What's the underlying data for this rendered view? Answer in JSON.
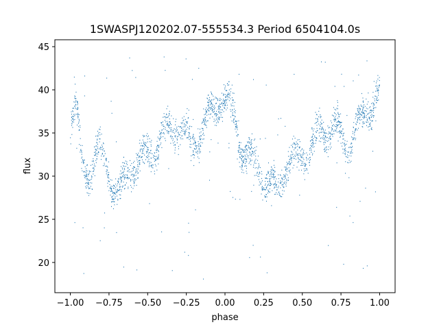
{
  "chart_data": {
    "type": "scatter",
    "title": "1SWASPJ120202.07-555534.3 Period 6504104.0s",
    "xlabel": "phase",
    "ylabel": "flux",
    "xlim": [
      -1.1,
      1.1
    ],
    "ylim": [
      16.5,
      45.8
    ],
    "xticks": [
      -1.0,
      -0.75,
      -0.5,
      -0.25,
      0.0,
      0.25,
      0.5,
      0.75,
      1.0
    ],
    "xtick_labels": [
      "−1.00",
      "−0.75",
      "−0.50",
      "−0.25",
      "0.00",
      "0.25",
      "0.50",
      "0.75",
      "1.00"
    ],
    "yticks": [
      20,
      25,
      30,
      35,
      40,
      45
    ],
    "ytick_labels": [
      "20",
      "25",
      "30",
      "35",
      "40",
      "45"
    ],
    "grid": false,
    "color": "#1f77b4",
    "trend": [
      {
        "x": -1.0,
        "y": 36.5
      },
      {
        "x": -0.97,
        "y": 38.0
      },
      {
        "x": -0.95,
        "y": 36.0
      },
      {
        "x": -0.93,
        "y": 31.0
      },
      {
        "x": -0.88,
        "y": 30.5
      },
      {
        "x": -0.82,
        "y": 33.0
      },
      {
        "x": -0.77,
        "y": 31.0
      },
      {
        "x": -0.72,
        "y": 29.0
      },
      {
        "x": -0.68,
        "y": 28.0
      },
      {
        "x": -0.6,
        "y": 31.5
      },
      {
        "x": -0.52,
        "y": 32.0
      },
      {
        "x": -0.45,
        "y": 33.5
      },
      {
        "x": -0.38,
        "y": 35.0
      },
      {
        "x": -0.3,
        "y": 36.0
      },
      {
        "x": -0.22,
        "y": 33.5
      },
      {
        "x": -0.15,
        "y": 35.5
      },
      {
        "x": -0.08,
        "y": 37.5
      },
      {
        "x": -0.02,
        "y": 39.5
      },
      {
        "x": 0.05,
        "y": 37.0
      },
      {
        "x": 0.1,
        "y": 34.0
      },
      {
        "x": 0.15,
        "y": 32.0
      },
      {
        "x": 0.22,
        "y": 31.0
      },
      {
        "x": 0.28,
        "y": 29.0
      },
      {
        "x": 0.33,
        "y": 28.0
      },
      {
        "x": 0.4,
        "y": 31.5
      },
      {
        "x": 0.48,
        "y": 32.0
      },
      {
        "x": 0.55,
        "y": 33.5
      },
      {
        "x": 0.62,
        "y": 35.0
      },
      {
        "x": 0.7,
        "y": 36.0
      },
      {
        "x": 0.78,
        "y": 33.5
      },
      {
        "x": 0.85,
        "y": 35.5
      },
      {
        "x": 0.92,
        "y": 37.5
      },
      {
        "x": 0.98,
        "y": 39.5
      }
    ],
    "n_points": 2400
  }
}
